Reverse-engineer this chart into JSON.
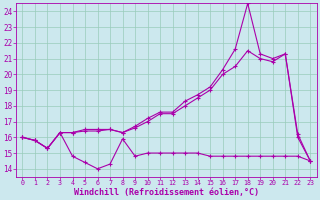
{
  "xlabel": "Windchill (Refroidissement éolien,°C)",
  "ylabel": "",
  "bg_color": "#cce8ee",
  "line_color": "#aa00aa",
  "grid_color": "#99ccbb",
  "xlim": [
    -0.5,
    23.5
  ],
  "ylim": [
    13.5,
    24.5
  ],
  "xticks": [
    0,
    1,
    2,
    3,
    4,
    5,
    6,
    7,
    8,
    9,
    10,
    11,
    12,
    13,
    14,
    15,
    16,
    17,
    18,
    19,
    20,
    21,
    22,
    23
  ],
  "yticks": [
    14,
    15,
    16,
    17,
    18,
    19,
    20,
    21,
    22,
    23,
    24
  ],
  "series1": [
    16.0,
    15.8,
    15.3,
    16.3,
    14.8,
    14.4,
    14.0,
    14.3,
    15.9,
    14.8,
    15.0,
    15.0,
    15.0,
    15.0,
    15.0,
    14.8,
    14.8,
    14.8,
    14.8,
    14.8,
    14.8,
    14.8,
    14.8,
    14.5
  ],
  "series2": [
    16.0,
    15.8,
    15.3,
    16.3,
    16.3,
    16.4,
    16.4,
    16.5,
    16.3,
    16.6,
    17.0,
    17.5,
    17.5,
    18.0,
    18.5,
    19.0,
    20.0,
    20.5,
    21.5,
    21.0,
    20.8,
    21.3,
    16.0,
    14.5
  ],
  "series3": [
    16.0,
    15.8,
    15.3,
    16.3,
    16.3,
    16.5,
    16.5,
    16.5,
    16.3,
    16.7,
    17.2,
    17.6,
    17.6,
    18.3,
    18.7,
    19.2,
    20.3,
    21.6,
    24.5,
    21.3,
    21.0,
    21.3,
    16.2,
    14.5
  ],
  "xlabel_fontsize": 6,
  "ytick_fontsize": 5.5,
  "xtick_fontsize": 4.8,
  "linewidth": 0.8,
  "markersize": 3.0
}
